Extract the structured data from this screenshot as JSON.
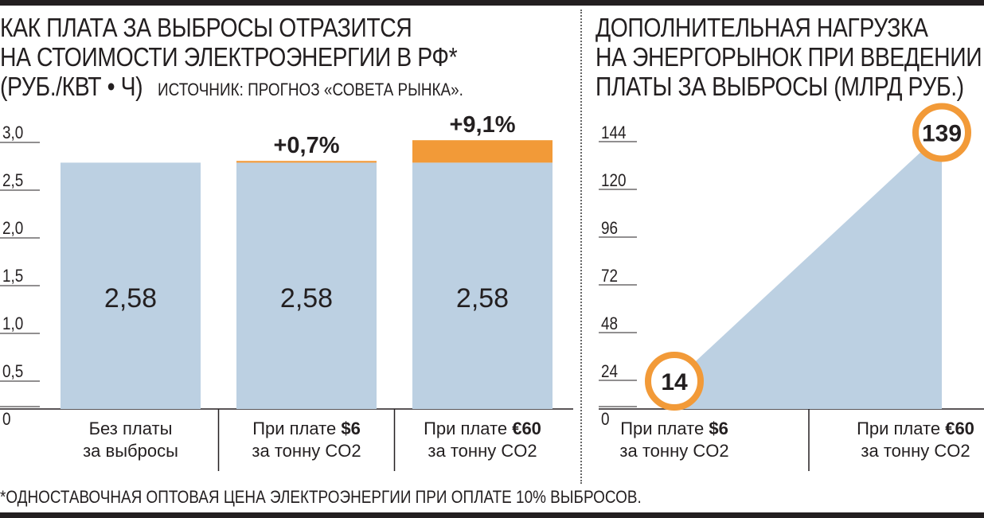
{
  "left_chart": {
    "title_line1": "КАК ПЛАТА ЗА ВЫБРОСЫ ОТРАЗИТСЯ",
    "title_line2": "НА СТОИМОСТИ ЭЛЕКТРОЭНЕРГИИ В РФ*",
    "title_line3": "(РУБ./КВТ • Ч)",
    "source": "ИСТОЧНИК: ПРОГНОЗ «СОВЕТА РЫНКА».",
    "categories": [
      {
        "line1_prefix": "Без платы",
        "line1_bold": "",
        "line2": "за выбросы"
      },
      {
        "line1_prefix": "При плате ",
        "line1_bold": "$6",
        "line2": "за тонну CO2"
      },
      {
        "line1_prefix": "При плате ",
        "line1_bold": "€60",
        "line2": "за тонну CO2"
      }
    ]
  },
  "right_chart": {
    "title_line1": "ДОПОЛНИТЕЛЬНАЯ НАГРУЗКА",
    "title_line2": "НА ЭНЕРГОРЫНОК ПРИ ВВЕДЕНИИ",
    "title_line3": "ПЛАТЫ ЗА ВЫБРОСЫ (МЛРД РУБ.)",
    "categories": [
      {
        "line1_prefix": "При плате ",
        "line1_bold": "$6",
        "line2": "за тонну CO2"
      },
      {
        "line1_prefix": "При плате ",
        "line1_bold": "€60",
        "line2": "за тонну CO2"
      }
    ]
  },
  "footnote": "*ОДНОСТАВОЧНАЯ ОПТОВАЯ ЦЕНА ЭЛЕКТРОЭНЕРГИИ ПРИ ОПЛАТЕ 10% ВЫБРОСОВ.",
  "colors": {
    "base_bar": "#bcd0e2",
    "increment": "#f29a38",
    "area": "#bcd0e2",
    "text": "#231f20"
  },
  "chart_data": [
    {
      "type": "bar",
      "stacked": true,
      "categories": [
        "Без платы за выбросы",
        "При плате $6 за тонну CO2",
        "При плате €60 за тонну CO2"
      ],
      "series": [
        {
          "values": [
            2.58,
            2.58,
            2.58
          ],
          "labels": [
            "2,58",
            "2,58",
            "2,58"
          ]
        },
        {
          "values": [
            0,
            0.018,
            0.235
          ],
          "labels": [
            "",
            "+0,7%",
            "+9,1%"
          ]
        }
      ],
      "ylim": [
        0,
        3.0
      ],
      "yticks": [
        0,
        0.5,
        1.0,
        1.5,
        2.0,
        2.5,
        3.0
      ],
      "ytick_labels": [
        "0",
        "0,5",
        "1,0",
        "1,5",
        "2,0",
        "2,5",
        "3,0"
      ],
      "grid": false
    },
    {
      "type": "area",
      "categories": [
        "При плате $6 за тонну CO2",
        "При плате €60 за тонну CO2"
      ],
      "values": [
        14,
        139
      ],
      "labels": [
        "14",
        "139"
      ],
      "ylim": [
        0,
        144
      ],
      "yticks": [
        0,
        24,
        48,
        72,
        96,
        120,
        144
      ],
      "ytick_labels": [
        "0",
        "24",
        "48",
        "72",
        "96",
        "120",
        "144"
      ],
      "grid": false
    }
  ]
}
